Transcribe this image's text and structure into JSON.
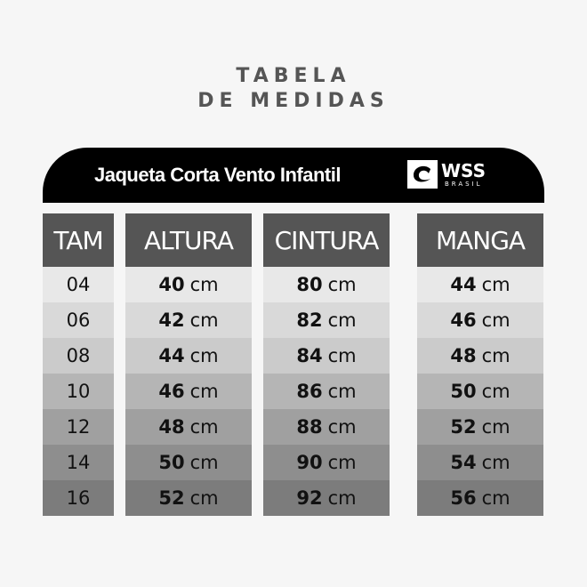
{
  "title_line1": "TABELA",
  "title_line2": "DE MEDIDAS",
  "banner": {
    "product": "Jaqueta Corta Vento Infantil",
    "logo_name": "WSS",
    "logo_sub": "BRASIL"
  },
  "unit": "cm",
  "row_colors": [
    "#e8e8e8",
    "#d9d9d9",
    "#cbcbcb",
    "#b5b5b5",
    "#a0a0a0",
    "#8e8e8e",
    "#7c7c7c"
  ],
  "header_color": "#555555",
  "columns": [
    {
      "header": "TAM",
      "values": [
        "04",
        "06",
        "08",
        "10",
        "12",
        "14",
        "16"
      ]
    },
    {
      "header": "ALTURA",
      "values": [
        "40",
        "42",
        "44",
        "46",
        "48",
        "50",
        "52"
      ]
    },
    {
      "header": "CINTURA",
      "values": [
        "80",
        "82",
        "84",
        "86",
        "88",
        "90",
        "92"
      ]
    },
    {
      "header": "MANGA",
      "values": [
        "44",
        "46",
        "48",
        "50",
        "52",
        "54",
        "56"
      ]
    }
  ]
}
